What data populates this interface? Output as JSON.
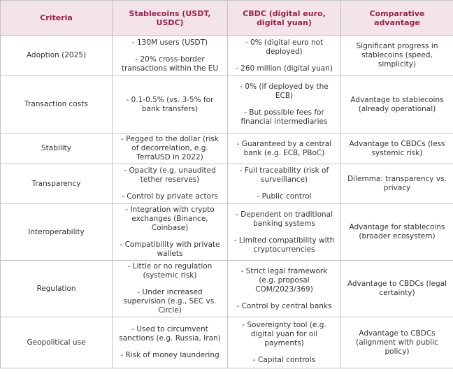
{
  "table": {
    "header": [
      "Criteria",
      "Stablecoins (USDT, USDC)",
      "CBDC (digital euro, digital yuan)",
      "Comparative advantage"
    ],
    "rows": [
      [
        "Adoption (2025)",
        [
          "- 130M users (USDT)",
          "- 20% cross-border transactions within the EU"
        ],
        [
          "- 0% (digital euro not deployed)",
          "- 260 million (digital yuan)"
        ],
        [
          "Significant progress in stablecoins (speed, simplicity)"
        ]
      ],
      [
        "Transaction costs",
        [
          "- 0.1-0.5% (vs. 3-5% for bank transfers)"
        ],
        [
          "- 0% (if deployed by the ECB)",
          "- But possible fees for financial intermediaries"
        ],
        [
          "Advantage to stablecoins (already operational)"
        ]
      ],
      [
        "Stability",
        [
          "- Pegged to the dollar (risk of decorrelation, e.g. TerraUSD in 2022)"
        ],
        [
          "- Guaranteed by a central bank (e.g. ECB, PBoC)"
        ],
        [
          "Advantage to CBDCs (less systemic risk)"
        ]
      ],
      [
        "Transparency",
        [
          "- Opacity (e.g. unaudited tether reserves)",
          "- Control by private actors"
        ],
        [
          "- Full traceability (risk of surveillance)",
          "- Public control"
        ],
        [
          "Dilemma: transparency vs. privacy"
        ]
      ],
      [
        "Interoperability",
        [
          "- Integration with crypto exchanges (Binance, Coinbase)",
          "- Compatibility with private wallets"
        ],
        [
          "- Dependent on traditional banking systems",
          "- Limited compatibility with cryptocurrencies"
        ],
        [
          "Advantage for stablecoins (broader ecosystem)"
        ]
      ],
      [
        "Regulation",
        [
          "- Little or no regulation (systemic risk)",
          "- Under increased supervision (e.g., SEC vs. Circle)"
        ],
        [
          "- Strict legal framework (e.g. proposal COM/2023/369)",
          "- Control by central banks"
        ],
        [
          "Advantage to CBDCs (legal certainty)"
        ]
      ],
      [
        "Geopolitical use",
        [
          "- Used to circumvent sanctions (e.g. Russia, Iran)",
          "- Risk of money laundering"
        ],
        [
          "- Sovereignty tool (e.g. digital yuan for oil payments)",
          "- Capital controls"
        ],
        [
          "Advantage to CBDCs (alignment with public policy)"
        ]
      ]
    ]
  }
}
